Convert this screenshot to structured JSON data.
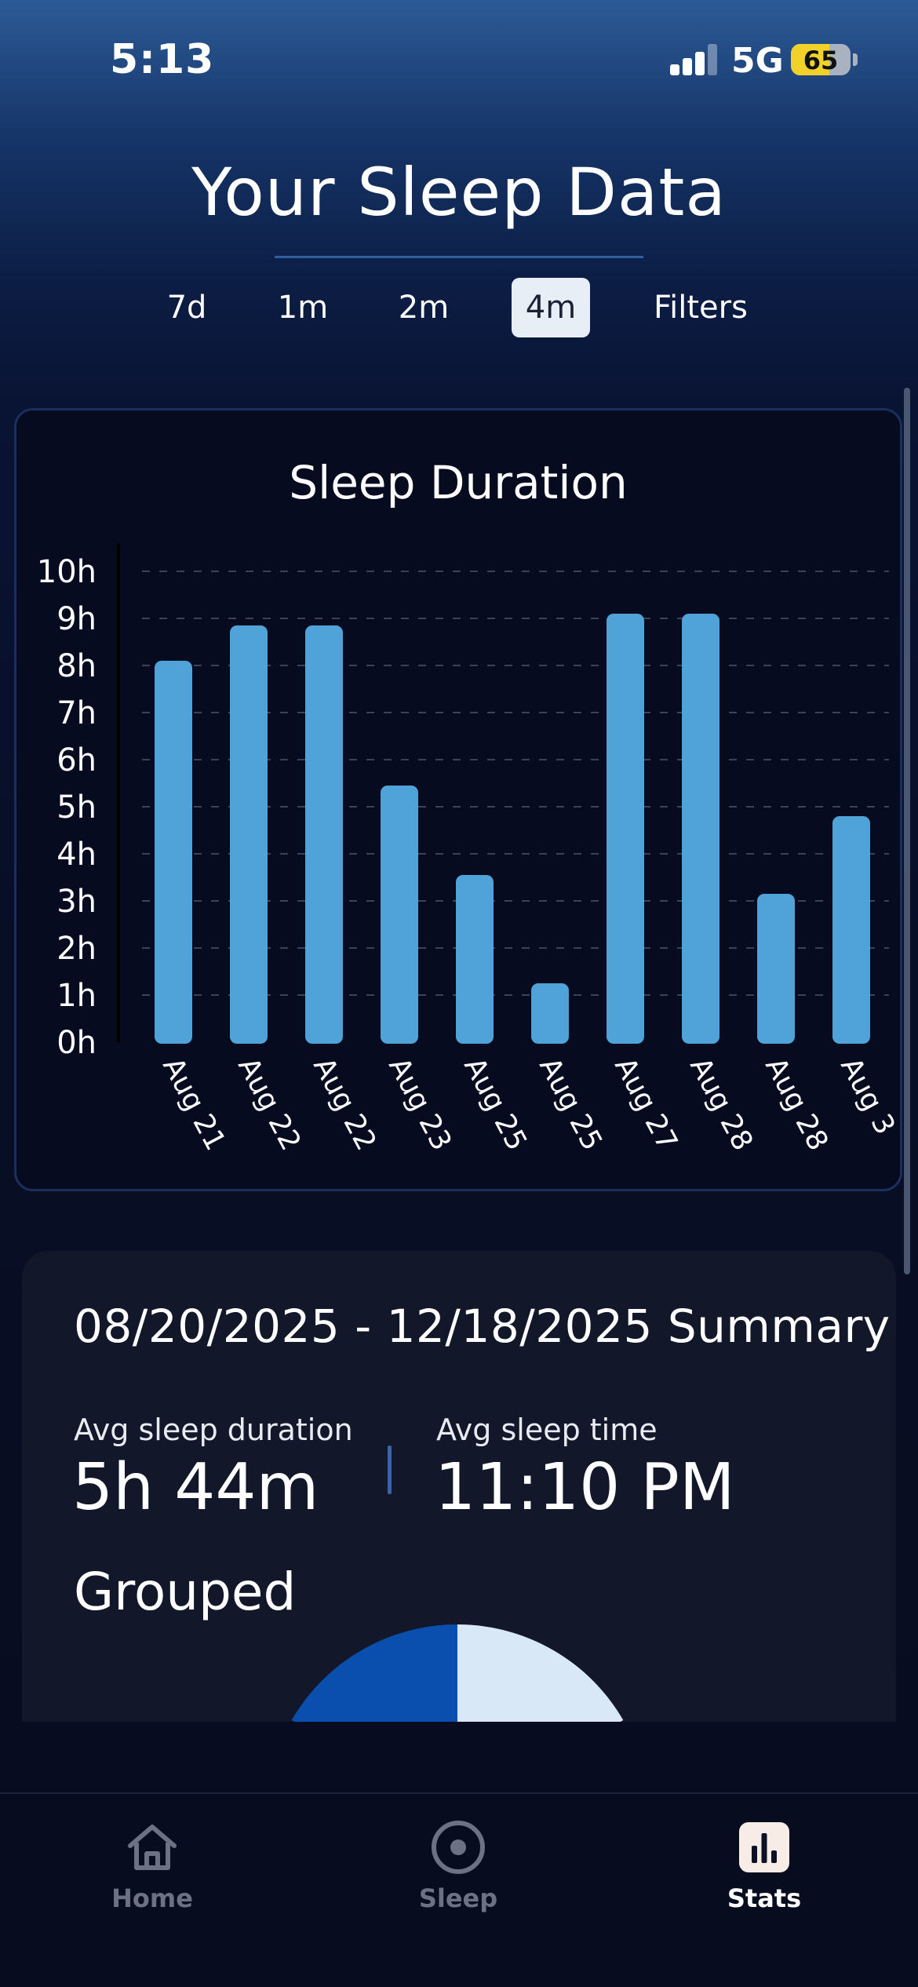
{
  "status_bar": {
    "time": "5:13",
    "network": "5G",
    "battery_level": "65",
    "battery_percent": 65,
    "signal_bars_active": 3,
    "signal_bars_total": 4,
    "battery_color": "#f2d229"
  },
  "header": {
    "title": "Your Sleep Data",
    "tabs": [
      {
        "label": "7d",
        "active": false
      },
      {
        "label": "1m",
        "active": false
      },
      {
        "label": "2m",
        "active": false
      },
      {
        "label": "4m",
        "active": true
      },
      {
        "label": "Filters",
        "active": false
      }
    ]
  },
  "chart_data": {
    "type": "bar",
    "title": "Sleep Duration",
    "categories": [
      "Aug 21",
      "Aug 22",
      "Aug 22",
      "Aug 23",
      "Aug 25",
      "Aug 25",
      "Aug 27",
      "Aug 28",
      "Aug 28",
      "Aug 3"
    ],
    "values": [
      8.1,
      8.85,
      8.85,
      5.45,
      3.55,
      1.25,
      9.1,
      9.1,
      3.15,
      4.8
    ],
    "y_ticks": [
      "0h",
      "1h",
      "2h",
      "3h",
      "4h",
      "5h",
      "6h",
      "7h",
      "8h",
      "9h",
      "10h"
    ],
    "ylim": [
      0,
      10
    ],
    "grid": true,
    "grid_style": "dashed",
    "bar_color": "#4fa3d9",
    "xlabel": "",
    "ylabel": ""
  },
  "summary": {
    "title": "08/20/2025 - 12/18/2025 Summary",
    "avg_duration_label": "Avg sleep duration",
    "avg_duration_value": "5h 44m",
    "avg_time_label": "Avg sleep time",
    "avg_time_value": "11:10 PM",
    "grouped_title": "Grouped",
    "pie_colors": [
      "#0a4fad",
      "#d9e8f7"
    ]
  },
  "nav": {
    "items": [
      {
        "label": "Home",
        "icon": "home-icon",
        "active": false
      },
      {
        "label": "Sleep",
        "icon": "sleep-icon",
        "active": false
      },
      {
        "label": "Stats",
        "icon": "stats-icon",
        "active": true
      }
    ]
  }
}
